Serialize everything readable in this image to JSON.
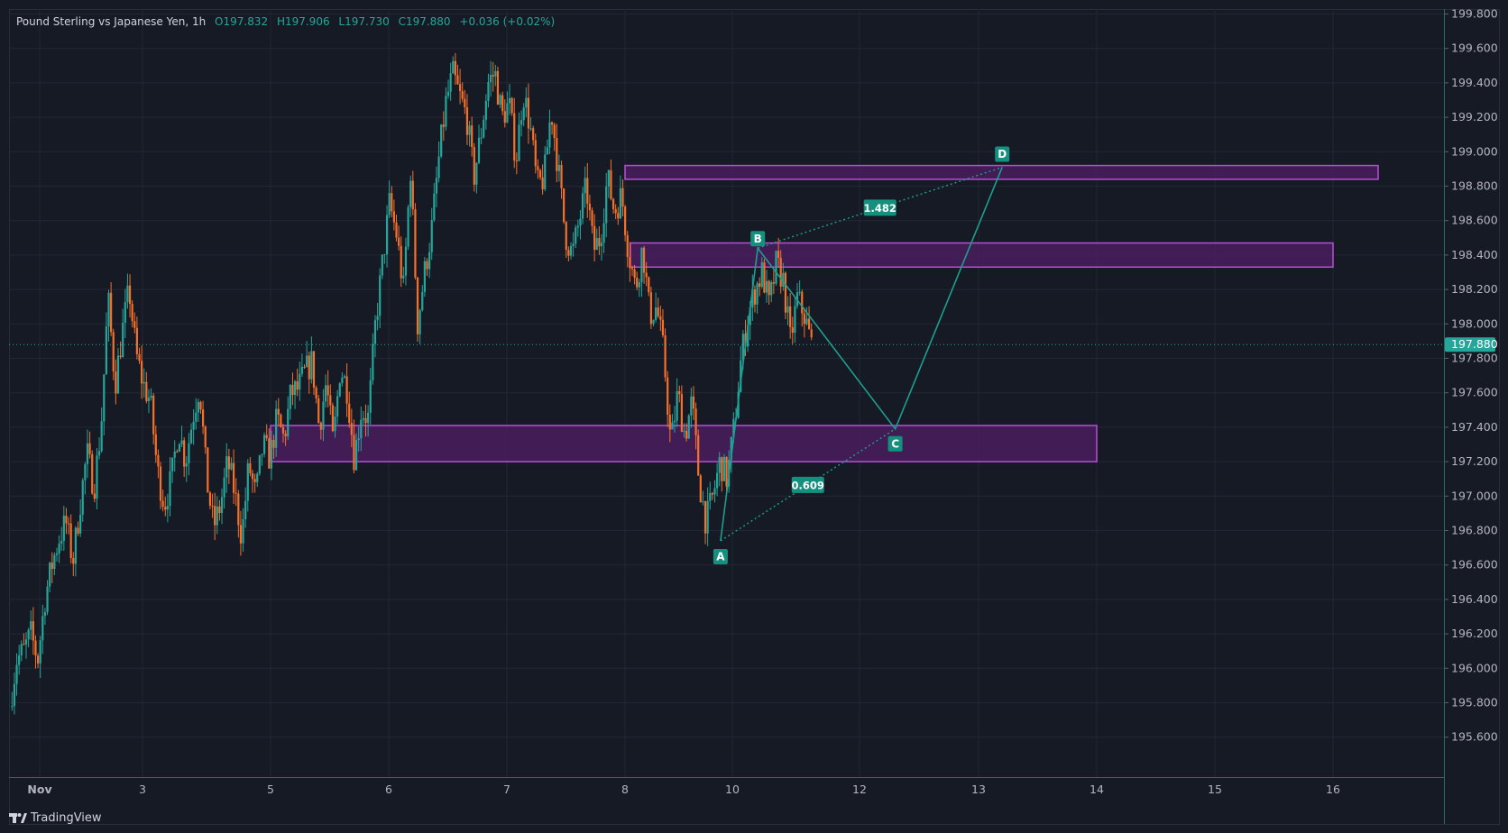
{
  "legend": {
    "symbol_text": "Pound Sterling vs Japanese Yen, 1h",
    "open": "O197.832",
    "high": "H197.906",
    "low": "L197.730",
    "close": "C197.880",
    "change": "+0.036 (+0.02%)"
  },
  "footer": {
    "brand": "TradingView",
    "logo_icon": "tradingview-logo-icon"
  },
  "colors": {
    "background": "#161a25",
    "grid": "#232735",
    "up": "#26a69a",
    "down": "#f7702a",
    "harmonic": "#1e9e8f",
    "zone_fill": "#4a1f5e",
    "zone_border": "#b74fd6",
    "axis_text": "#b2b5be"
  },
  "chart_data": {
    "type": "candlestick",
    "title": "",
    "x_ticks": [
      "Nov",
      "3",
      "5",
      "6",
      "7",
      "8",
      "10",
      "12",
      "13",
      "14",
      "15",
      "16"
    ],
    "y_ticks": [
      "199.800",
      "199.600",
      "199.400",
      "199.200",
      "199.000",
      "198.800",
      "198.600",
      "198.400",
      "198.200",
      "198.000",
      "197.800",
      "197.600",
      "197.400",
      "197.200",
      "197.000",
      "196.800",
      "196.600",
      "196.400",
      "196.200",
      "196.000",
      "195.800",
      "195.600"
    ],
    "ylim": [
      195.55,
      199.98
    ],
    "price_series": [
      195.78,
      196.05,
      196.1,
      196.2,
      196.05,
      196.4,
      196.6,
      196.75,
      196.85,
      196.62,
      196.95,
      197.25,
      197.05,
      197.4,
      198.15,
      197.65,
      197.95,
      198.2,
      197.82,
      197.65,
      197.55,
      197.15,
      196.95,
      197.1,
      197.4,
      197.2,
      197.45,
      197.65,
      197.1,
      196.82,
      196.95,
      197.2,
      197.02,
      196.76,
      197.18,
      197.0,
      197.3,
      197.22,
      197.45,
      197.33,
      197.6,
      197.62,
      197.72,
      197.78,
      197.4,
      197.66,
      197.3,
      197.75,
      197.62,
      197.22,
      197.5,
      197.45,
      198.0,
      198.35,
      198.7,
      198.52,
      198.2,
      198.9,
      198.0,
      198.3,
      198.55,
      198.95,
      199.28,
      199.45,
      199.32,
      199.2,
      198.85,
      199.1,
      199.4,
      199.46,
      199.2,
      199.28,
      198.95,
      199.35,
      199.15,
      198.8,
      198.85,
      199.25,
      198.9,
      198.52,
      198.4,
      198.6,
      198.8,
      198.43,
      198.5,
      198.85,
      198.65,
      198.75,
      198.42,
      198.2,
      198.45,
      198.05,
      198.1,
      197.82,
      197.3,
      197.6,
      197.35,
      197.55,
      197.1,
      196.85,
      197.0,
      197.2,
      197.1,
      197.4,
      197.8,
      198.05,
      198.2,
      198.3,
      198.1,
      198.35,
      198.25,
      197.9,
      198.15,
      198.05,
      197.88
    ],
    "zones": [
      {
        "top": 198.92,
        "bottom": 198.84,
        "x_start": 8.0,
        "x_end": 17.0
      },
      {
        "top": 198.47,
        "bottom": 198.33,
        "x_start": 8.1,
        "x_end": 16.0
      },
      {
        "top": 197.41,
        "bottom": 197.2,
        "x_start": 5.0,
        "x_end": 14.0
      }
    ],
    "harmonic_points": [
      {
        "label": "A",
        "value": 196.74
      },
      {
        "label": "B",
        "value": 198.44
      },
      {
        "label": "C",
        "value": 197.39
      },
      {
        "label": "D",
        "value": 198.91
      }
    ],
    "ratios": [
      {
        "label": "0.609",
        "value": 0.609
      },
      {
        "label": "1.482",
        "value": 1.482
      }
    ],
    "last_price": {
      "label": "197.880",
      "value": 197.88
    },
    "grid": true
  }
}
